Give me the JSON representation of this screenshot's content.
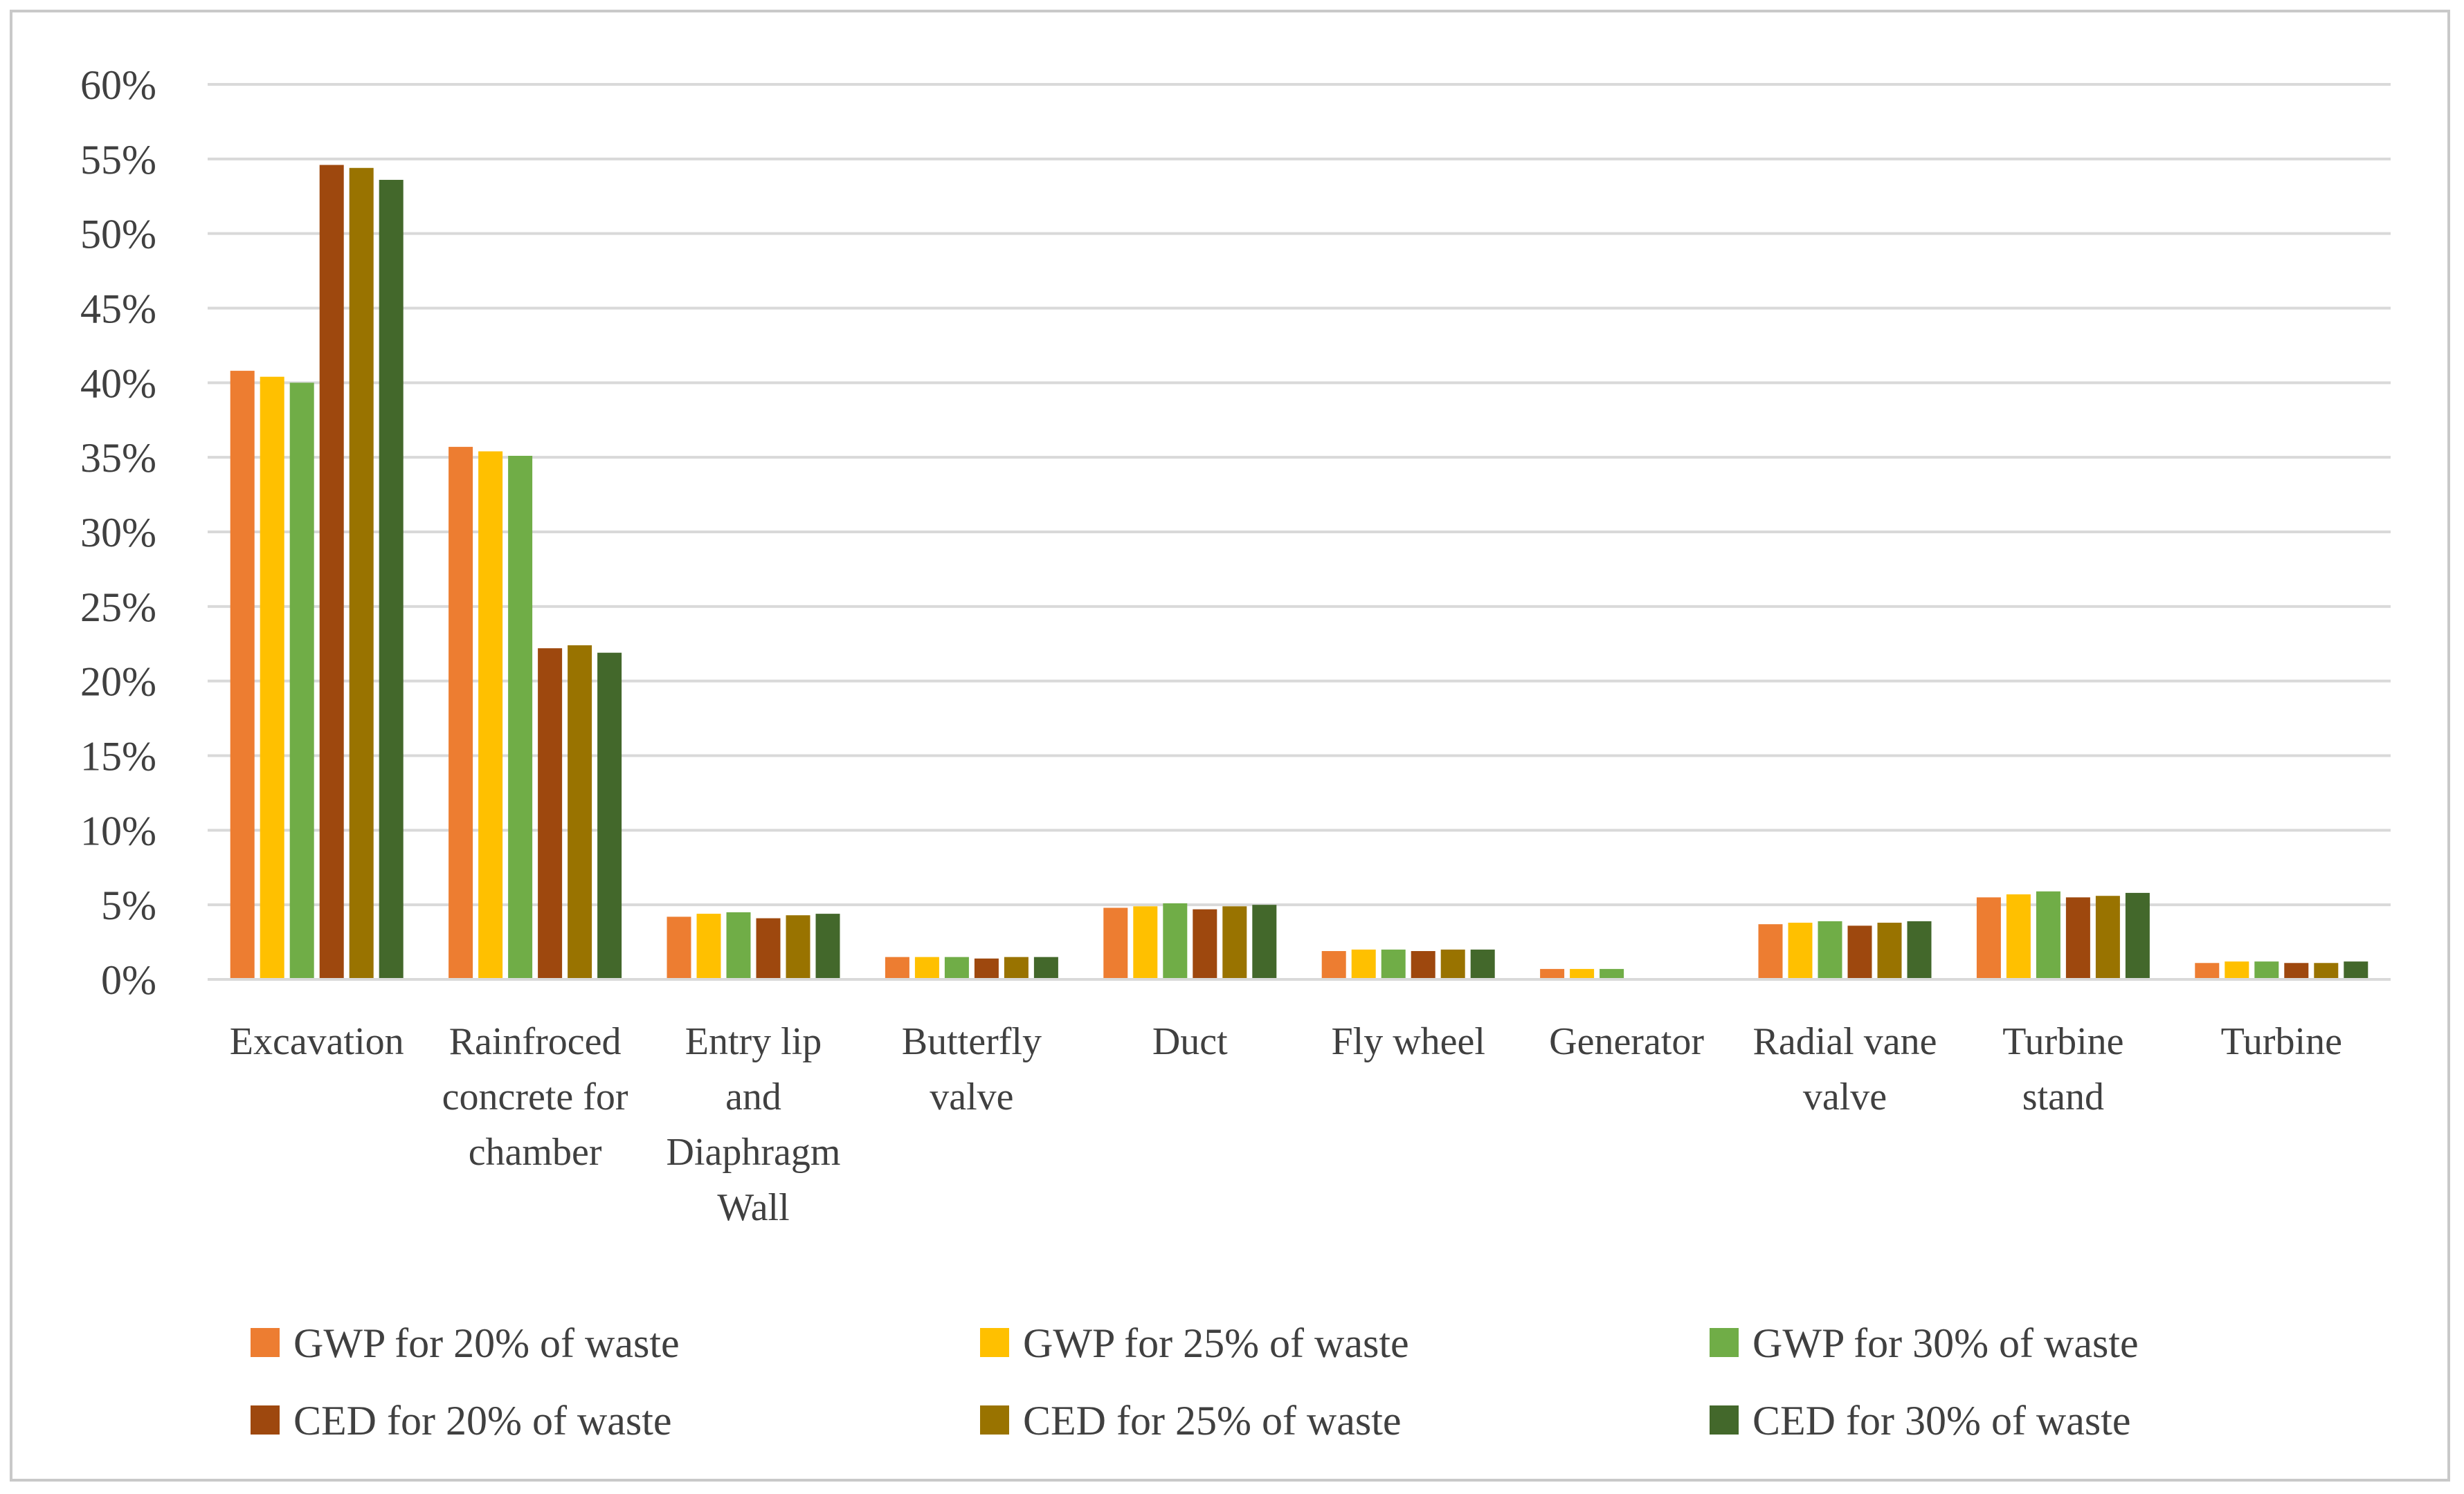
{
  "chart_data": {
    "type": "bar",
    "title": "",
    "xlabel": "",
    "ylabel": "",
    "ylim": [
      0,
      60
    ],
    "y_ticks": [
      "0%",
      "5%",
      "10%",
      "15%",
      "20%",
      "25%",
      "30%",
      "35%",
      "40%",
      "45%",
      "50%",
      "55%",
      "60%"
    ],
    "grid": true,
    "legend_position": "bottom",
    "categories": [
      [
        "Excavation"
      ],
      [
        "Rainfroced",
        "concrete for",
        "chamber"
      ],
      [
        "Entry lip",
        "and",
        "Diaphragm",
        "Wall"
      ],
      [
        "Butterfly",
        "valve"
      ],
      [
        "Duct"
      ],
      [
        "Fly wheel"
      ],
      [
        "Generator"
      ],
      [
        "Radial vane",
        "valve"
      ],
      [
        "Turbine",
        "stand"
      ],
      [
        "Turbine"
      ]
    ],
    "series": [
      {
        "name": "GWP for 20% of waste",
        "color": "#ED7D31",
        "values": [
          40.8,
          35.7,
          4.2,
          1.5,
          4.8,
          1.9,
          0.7,
          3.7,
          5.5,
          1.1
        ]
      },
      {
        "name": "GWP for 25% of waste",
        "color": "#FFC000",
        "values": [
          40.4,
          35.4,
          4.4,
          1.5,
          4.9,
          2.0,
          0.7,
          3.8,
          5.7,
          1.2
        ]
      },
      {
        "name": "GWP for 30% of waste",
        "color": "#70AD47",
        "values": [
          40.0,
          35.1,
          4.5,
          1.5,
          5.1,
          2.0,
          0.7,
          3.9,
          5.9,
          1.2
        ]
      },
      {
        "name": "CED for 20% of waste",
        "color": "#9E480E",
        "values": [
          54.6,
          22.2,
          4.1,
          1.4,
          4.7,
          1.9,
          0.0,
          3.6,
          5.5,
          1.1
        ]
      },
      {
        "name": "CED for 25% of waste",
        "color": "#997300",
        "values": [
          54.4,
          22.4,
          4.3,
          1.5,
          4.9,
          2.0,
          0.0,
          3.8,
          5.6,
          1.1
        ]
      },
      {
        "name": "CED for 30% of waste",
        "color": "#43682B",
        "values": [
          53.6,
          21.9,
          4.4,
          1.5,
          5.0,
          2.0,
          0.0,
          3.9,
          5.8,
          1.2
        ]
      }
    ]
  }
}
